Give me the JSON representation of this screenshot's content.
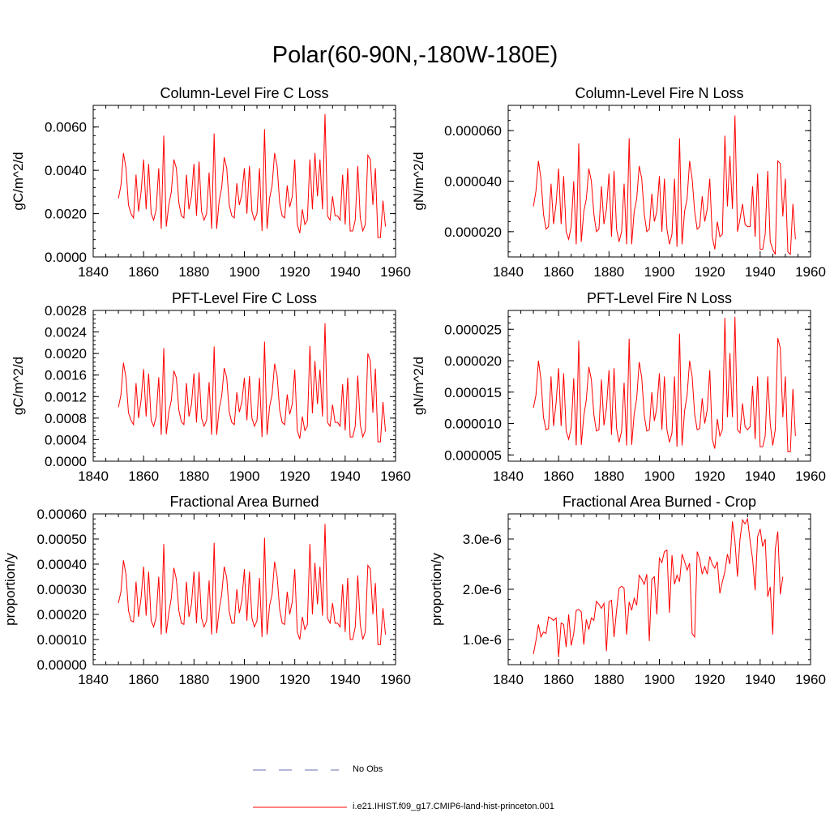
{
  "page_title": "Polar(60-90N,-180W-180E)",
  "legend": {
    "obs_label": "No Obs",
    "obs_color": "#6b6fb5",
    "model_label": "i.e21.IHIST.f09_g17.CMIP6-land-hist-princeton.001",
    "model_color": "#ff0000"
  },
  "chart_data": [
    {
      "type": "line",
      "title": "Column-Level Fire C Loss",
      "ylabel": "gC/m^2/d",
      "xlim": [
        1840,
        1960
      ],
      "ylim": [
        0,
        0.007
      ],
      "x_ticks": [
        "1840",
        "1860",
        "1880",
        "1900",
        "1920",
        "1940",
        "1960"
      ],
      "y_ticks": [
        {
          "value": 0,
          "label": "0.0000"
        },
        {
          "value": 0.002,
          "label": "0.0020"
        },
        {
          "value": 0.004,
          "label": "0.0040"
        },
        {
          "value": 0.006,
          "label": "0.0060"
        }
      ],
      "x_start": 1850,
      "series": [
        {
          "color": "#ff0000",
          "values": [
            0.0027,
            0.0033,
            0.0048,
            0.0041,
            0.0024,
            0.002,
            0.0018,
            0.0038,
            0.0021,
            0.003,
            0.0045,
            0.0022,
            0.0043,
            0.002,
            0.0017,
            0.0022,
            0.0041,
            0.0013,
            0.0056,
            0.0014,
            0.0024,
            0.003,
            0.0045,
            0.0041,
            0.0025,
            0.0019,
            0.0018,
            0.0038,
            0.0022,
            0.0028,
            0.0043,
            0.0019,
            0.0044,
            0.0021,
            0.0017,
            0.002,
            0.0039,
            0.0013,
            0.0057,
            0.0013,
            0.0026,
            0.0032,
            0.0046,
            0.0041,
            0.0024,
            0.0019,
            0.0018,
            0.0034,
            0.0024,
            0.0029,
            0.0041,
            0.002,
            0.0042,
            0.0021,
            0.0017,
            0.002,
            0.0041,
            0.0012,
            0.0059,
            0.0013,
            0.0027,
            0.0033,
            0.0048,
            0.0042,
            0.0025,
            0.0019,
            0.0018,
            0.0033,
            0.0023,
            0.0028,
            0.0045,
            0.0015,
            0.0011,
            0.0022,
            0.0015,
            0.0017,
            0.0045,
            0.0022,
            0.0048,
            0.0028,
            0.0045,
            0.0022,
            0.0066,
            0.0019,
            0.0017,
            0.0028,
            0.0019,
            0.0019,
            0.0017,
            0.0038,
            0.0015,
            0.0041,
            0.0012,
            0.0012,
            0.0017,
            0.0042,
            0.0018,
            0.0012,
            0.0015,
            0.0047,
            0.0045,
            0.0024,
            0.0041,
            0.0009,
            0.0009,
            0.0026,
            0.0014
          ]
        }
      ]
    },
    {
      "type": "line",
      "title": "Column-Level Fire N Loss",
      "ylabel": "gN/m^2/d",
      "xlim": [
        1840,
        1960
      ],
      "ylim": [
        1e-05,
        7e-05
      ],
      "x_ticks": [
        "1840",
        "1860",
        "1880",
        "1900",
        "1920",
        "1940",
        "1960"
      ],
      "y_ticks": [
        {
          "value": 2e-05,
          "label": "0.000020"
        },
        {
          "value": 4e-05,
          "label": "0.000040"
        },
        {
          "value": 6e-05,
          "label": "0.000060"
        }
      ],
      "x_start": 1850,
      "series": [
        {
          "color": "#ff0000",
          "values": [
            3e-05,
            3.6e-05,
            4.8e-05,
            4.1e-05,
            2.7e-05,
            2.1e-05,
            2.2e-05,
            3.9e-05,
            2.3e-05,
            3.1e-05,
            4.5e-05,
            2.3e-05,
            4.2e-05,
            2e-05,
            1.7e-05,
            2.2e-05,
            4e-05,
            1.5e-05,
            5.5e-05,
            1.6e-05,
            2.8e-05,
            3.3e-05,
            4.5e-05,
            4e-05,
            2.7e-05,
            2e-05,
            2.1e-05,
            3.8e-05,
            2.3e-05,
            2.9e-05,
            4.3e-05,
            1.8e-05,
            4.4e-05,
            2.1e-05,
            1.6e-05,
            2e-05,
            3.9e-05,
            1.5e-05,
            5.7e-05,
            1.5e-05,
            2.8e-05,
            3.3e-05,
            4.6e-05,
            4.1e-05,
            2.7e-05,
            2e-05,
            2.1e-05,
            3.5e-05,
            2.4e-05,
            2.8e-05,
            4.2e-05,
            2e-05,
            4.1e-05,
            2.1e-05,
            1.5e-05,
            1.9e-05,
            4.1e-05,
            1.4e-05,
            5.7e-05,
            1.5e-05,
            2.8e-05,
            3.3e-05,
            4.8e-05,
            4.1e-05,
            2.8e-05,
            2.1e-05,
            2.2e-05,
            3.4e-05,
            2.4e-05,
            2.9e-05,
            4.1e-05,
            1.8e-05,
            1.3e-05,
            2.4e-05,
            1.8e-05,
            1.9e-05,
            5.8e-05,
            3e-05,
            5e-05,
            2.9e-05,
            6.6e-05,
            2e-05,
            2.5e-05,
            3.1e-05,
            2.3e-05,
            2.2e-05,
            2.2e-05,
            3.8e-05,
            1.8e-05,
            4.3e-05,
            1.3e-05,
            1.3e-05,
            1.9e-05,
            4.4e-05,
            1.6e-05,
            1.3e-05,
            1.1e-05,
            4.8e-05,
            4.7e-05,
            2.6e-05,
            4.1e-05,
            1.2e-05,
            1.1e-05,
            3.1e-05,
            1.7e-05
          ]
        }
      ]
    },
    {
      "type": "line",
      "title": "PFT-Level Fire C Loss",
      "ylabel": "gC/m^2/d",
      "xlim": [
        1840,
        1960
      ],
      "ylim": [
        0,
        0.0028
      ],
      "x_ticks": [
        "1840",
        "1860",
        "1880",
        "1900",
        "1920",
        "1940",
        "1960"
      ],
      "y_ticks": [
        {
          "value": 0,
          "label": "0.0000"
        },
        {
          "value": 0.0004,
          "label": "0.0004"
        },
        {
          "value": 0.0008,
          "label": "0.0008"
        },
        {
          "value": 0.0012,
          "label": "0.0012"
        },
        {
          "value": 0.0016,
          "label": "0.0016"
        },
        {
          "value": 0.002,
          "label": "0.0020"
        },
        {
          "value": 0.0024,
          "label": "0.0024"
        },
        {
          "value": 0.0028,
          "label": "0.0028"
        }
      ],
      "x_start": 1850,
      "series": [
        {
          "color": "#ff0000",
          "values": [
            0.001,
            0.00123,
            0.00183,
            0.00155,
            0.0009,
            0.00076,
            0.00068,
            0.00145,
            0.0008,
            0.00113,
            0.00171,
            0.00083,
            0.00163,
            0.00076,
            0.00065,
            0.00083,
            0.00156,
            0.00049,
            0.0021,
            0.0005,
            0.00091,
            0.00113,
            0.00168,
            0.00155,
            0.00095,
            0.00073,
            0.00068,
            0.00145,
            0.00083,
            0.00105,
            0.00163,
            0.00072,
            0.00165,
            0.0008,
            0.00065,
            0.00076,
            0.00147,
            0.00049,
            0.00213,
            0.00049,
            0.00098,
            0.00121,
            0.00173,
            0.00155,
            0.00091,
            0.00072,
            0.00068,
            0.00128,
            0.00091,
            0.0011,
            0.00155,
            0.00076,
            0.00158,
            0.0008,
            0.00065,
            0.00076,
            0.00155,
            0.00045,
            0.00222,
            0.00049,
            0.00101,
            0.00124,
            0.00181,
            0.00158,
            0.00095,
            0.00072,
            0.00068,
            0.00124,
            0.00087,
            0.00106,
            0.0017,
            0.00057,
            0.00042,
            0.00083,
            0.00057,
            0.00065,
            0.00214,
            0.00089,
            0.00186,
            0.00106,
            0.0017,
            0.00083,
            0.00256,
            0.00072,
            0.00065,
            0.00105,
            0.00072,
            0.00072,
            0.00065,
            0.00143,
            0.00057,
            0.00155,
            0.00045,
            0.00045,
            0.00065,
            0.00159,
            0.00068,
            0.00045,
            0.00057,
            0.002,
            0.00186,
            0.0009,
            0.00172,
            0.00036,
            0.00036,
            0.0011,
            0.00055
          ]
        }
      ]
    },
    {
      "type": "line",
      "title": "PFT-Level Fire N Loss",
      "ylabel": "gN/m^2/d",
      "xlim": [
        1840,
        1960
      ],
      "ylim": [
        4e-06,
        2.8e-05
      ],
      "x_ticks": [
        "1840",
        "1860",
        "1880",
        "1900",
        "1920",
        "1940",
        "1960"
      ],
      "y_ticks": [
        {
          "value": 5e-06,
          "label": "0.000005"
        },
        {
          "value": 1e-05,
          "label": "0.000010"
        },
        {
          "value": 1.5e-05,
          "label": "0.000015"
        },
        {
          "value": 2e-05,
          "label": "0.000020"
        },
        {
          "value": 2.5e-05,
          "label": "0.000025"
        }
      ],
      "x_start": 1850,
      "series": [
        {
          "color": "#ff0000",
          "values": [
            1.25e-05,
            1.45e-05,
            2e-05,
            1.7e-05,
            1.1e-05,
            9e-06,
            9.2e-06,
            1.75e-05,
            9.6e-06,
            1.33e-05,
            1.88e-05,
            9.6e-06,
            1.8e-05,
            8.8e-06,
            7.5e-06,
            9.3e-06,
            1.72e-05,
            6.5e-06,
            2.32e-05,
            6.6e-06,
            1.12e-05,
            1.38e-05,
            1.9e-05,
            1.7e-05,
            1.14e-05,
            8.8e-06,
            9e-06,
            1.7e-05,
            9.7e-06,
            1.25e-05,
            1.85e-05,
            8.2e-06,
            1.88e-05,
            9.2e-06,
            7e-06,
            8.8e-06,
            1.65e-05,
            6.5e-06,
            2.35e-05,
            6.6e-06,
            1.15e-05,
            1.4e-05,
            1.98e-05,
            1.73e-05,
            1.13e-05,
            8.8e-06,
            9e-06,
            1.5e-05,
            1.04e-05,
            1.25e-05,
            1.8e-05,
            9e-06,
            1.75e-05,
            9e-06,
            7e-06,
            8.5e-06,
            1.75e-05,
            6.3e-06,
            2.43e-05,
            6.5e-06,
            1.2e-05,
            1.45e-05,
            2e-05,
            1.75e-05,
            1.15e-05,
            9e-06,
            9.2e-06,
            1.4e-05,
            1e-05,
            1.22e-05,
            1.85e-05,
            7.5e-06,
            6e-06,
            1.07e-05,
            8e-06,
            9e-06,
            2.68e-05,
            1.1e-05,
            2.12e-05,
            1.1e-05,
            2.7e-05,
            9e-06,
            8.5e-06,
            1.32e-05,
            9.5e-06,
            9e-06,
            9.5e-06,
            1.6e-05,
            7.5e-06,
            1.75e-05,
            6.3e-06,
            6.3e-06,
            8e-06,
            1.75e-05,
            1e-05,
            6.5e-06,
            9e-06,
            2.36e-05,
            2.2e-05,
            1.1e-05,
            1.75e-05,
            5.5e-06,
            5.5e-06,
            1.55e-05,
            8e-06
          ]
        }
      ]
    },
    {
      "type": "line",
      "title": "Fractional Area Burned",
      "ylabel": "proportion/y",
      "xlim": [
        1840,
        1960
      ],
      "ylim": [
        0,
        0.0006
      ],
      "x_ticks": [
        "1840",
        "1860",
        "1880",
        "1900",
        "1920",
        "1940",
        "1960"
      ],
      "y_ticks": [
        {
          "value": 0,
          "label": "0.00000"
        },
        {
          "value": 0.0001,
          "label": "0.00010"
        },
        {
          "value": 0.0002,
          "label": "0.00020"
        },
        {
          "value": 0.0003,
          "label": "0.00030"
        },
        {
          "value": 0.0004,
          "label": "0.00040"
        },
        {
          "value": 0.0005,
          "label": "0.00050"
        },
        {
          "value": 0.0006,
          "label": "0.00060"
        }
      ],
      "x_start": 1850,
      "series": [
        {
          "color": "#ff0000",
          "values": [
            0.000245,
            0.00029,
            0.000415,
            0.00036,
            0.000215,
            0.000175,
            0.00017,
            0.00033,
            0.00019,
            0.000265,
            0.00039,
            0.000195,
            0.00037,
            0.000175,
            0.00015,
            0.00019,
            0.00035,
            0.00012,
            0.00048,
            0.000125,
            0.000205,
            0.000265,
            0.000385,
            0.00034,
            0.000215,
            0.000165,
            0.00016,
            0.00033,
            0.00019,
            0.00024,
            0.00037,
            0.000165,
            0.00037,
            0.000185,
            0.00015,
            0.000175,
            0.000335,
            0.00012,
            0.000485,
            0.000125,
            0.00022,
            0.00028,
            0.00039,
            0.000345,
            0.00021,
            0.000165,
            0.000165,
            0.0003,
            0.000205,
            0.000255,
            0.00038,
            0.000175,
            0.00037,
            0.000185,
            0.00015,
            0.000175,
            0.000345,
            0.00011,
            0.000505,
            0.00012,
            0.000235,
            0.00028,
            0.00041,
            0.00035,
            0.00022,
            0.000165,
            0.00016,
            0.00029,
            0.0002,
            0.00025,
            0.00038,
            0.00013,
            0.0001,
            0.00019,
            0.00014,
            0.00016,
            0.00048,
            0.0002,
            0.000405,
            0.00024,
            0.00039,
            0.000195,
            0.00056,
            0.000185,
            0.000165,
            0.000245,
            0.000165,
            0.000165,
            0.00015,
            0.00032,
            0.00013,
            0.000345,
            0.0001,
            0.0001,
            0.00015,
            0.000355,
            0.00016,
            0.0001,
            0.00013,
            0.000395,
            0.00038,
            0.0002,
            0.000325,
            8e-05,
            8e-05,
            0.000225,
            0.00012
          ]
        }
      ]
    },
    {
      "type": "line",
      "title": "Fractional Area Burned - Crop",
      "ylabel": "proportion/y",
      "xlim": [
        1840,
        1960
      ],
      "ylim": [
        5e-07,
        3.5e-06
      ],
      "x_ticks": [
        "1840",
        "1860",
        "1880",
        "1900",
        "1920",
        "1940",
        "1960"
      ],
      "y_ticks": [
        {
          "value": 1e-06,
          "label": "1.0e-6"
        },
        {
          "value": 2e-06,
          "label": "2.0e-6"
        },
        {
          "value": 3e-06,
          "label": "3.0e-6"
        }
      ],
      "x_start": 1850,
      "series": [
        {
          "color": "#ff0000",
          "values": [
            7.1e-07,
            9.8e-07,
            1.3e-06,
            1.05e-06,
            1.15e-06,
            1.12e-06,
            1.45e-06,
            1.42e-06,
            1.38e-06,
            1.43e-06,
            6.5e-07,
            1.33e-06,
            1.3e-06,
            8.5e-07,
            1.5e-06,
            8.8e-07,
            1.12e-06,
            1.58e-06,
            1.6e-06,
            1.55e-06,
            9e-07,
            1.4e-06,
            1.2e-06,
            1.43e-06,
            1.38e-06,
            1.76e-06,
            1.7e-06,
            1.62e-06,
            1.72e-06,
            7.7e-07,
            1.75e-06,
            1.78e-06,
            1.05e-06,
            1.58e-06,
            2.02e-06,
            2.06e-06,
            2.02e-06,
            1.1e-06,
            1.75e-06,
            1.58e-06,
            1.82e-06,
            1.68e-06,
            2.28e-06,
            2.2e-06,
            2.1e-06,
            2.3e-06,
            9.7e-07,
            2.2e-06,
            2.25e-06,
            1.5e-06,
            2.62e-06,
            2.53e-06,
            2.75e-06,
            2.78e-06,
            1.53e-06,
            2.68e-06,
            2.1e-06,
            2.28e-06,
            2.15e-06,
            2.7e-06,
            2.55e-06,
            2.38e-06,
            2.52e-06,
            1.12e-06,
            1.05e-06,
            2.75e-06,
            2.6e-06,
            2.3e-06,
            2.45e-06,
            2.3e-06,
            2.65e-06,
            2.5e-06,
            2.42e-06,
            2.55e-06,
            1.92e-06,
            2.15e-06,
            2.35e-06,
            2.7e-06,
            2.5e-06,
            3.35e-06,
            2.95e-06,
            2.25e-06,
            3e-06,
            3.38e-06,
            3.3e-06,
            3.4e-06,
            2.96e-06,
            2.6e-06,
            1.98e-06,
            3.05e-06,
            3.2e-06,
            2.85e-06,
            3e-06,
            1.85e-06,
            2.05e-06,
            1.1e-06,
            2.8e-06,
            3.15e-06,
            1.9e-06,
            2.25e-06
          ]
        }
      ]
    }
  ]
}
